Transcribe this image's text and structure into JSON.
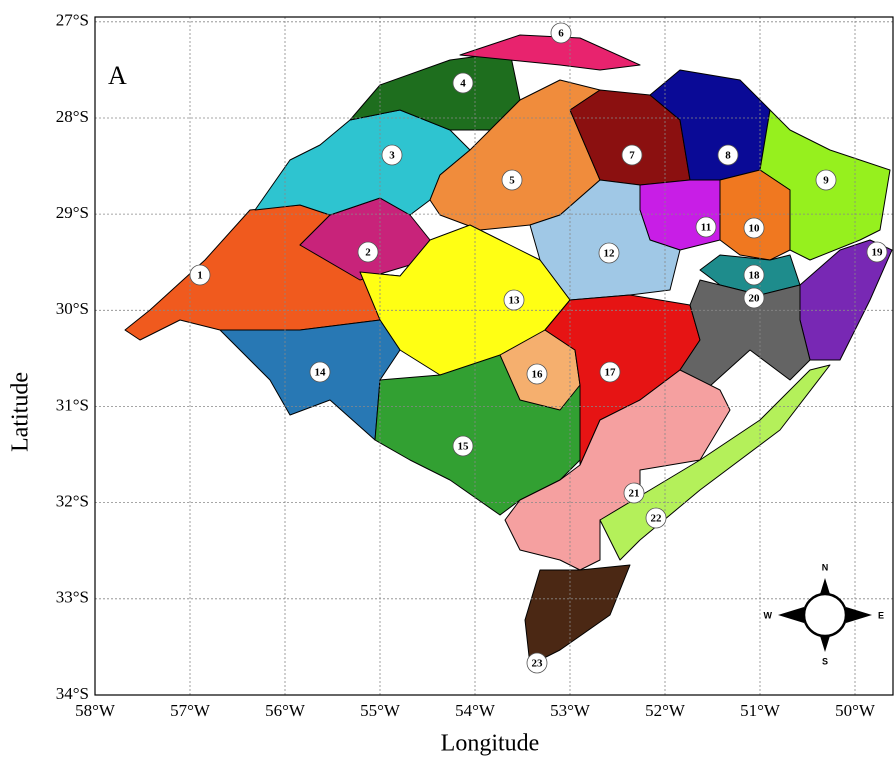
{
  "map": {
    "panel_label": "A",
    "x_label": "Longitude",
    "y_label": "Latitude",
    "xlim": [
      -58,
      -49.6
    ],
    "ylim": [
      -34,
      -26.95
    ],
    "xticks": [
      {
        "value": -58,
        "label": "58°W"
      },
      {
        "value": -57,
        "label": "57°W"
      },
      {
        "value": -56,
        "label": "56°W"
      },
      {
        "value": -55,
        "label": "55°W"
      },
      {
        "value": -54,
        "label": "54°W"
      },
      {
        "value": -53,
        "label": "53°W"
      },
      {
        "value": -52,
        "label": "52°W"
      },
      {
        "value": -51,
        "label": "51°W"
      },
      {
        "value": -50,
        "label": "50°W"
      }
    ],
    "yticks": [
      {
        "value": -27,
        "label": "27°S"
      },
      {
        "value": -28,
        "label": "28°S"
      },
      {
        "value": -29,
        "label": "29°S"
      },
      {
        "value": -30,
        "label": "30°S"
      },
      {
        "value": -31,
        "label": "31°S"
      },
      {
        "value": -32,
        "label": "32°S"
      },
      {
        "value": -33,
        "label": "33°S"
      },
      {
        "value": -34,
        "label": "34°S"
      }
    ],
    "grid": true,
    "regions": [
      {
        "label": "1",
        "color": "#f05a1e"
      },
      {
        "label": "2",
        "color": "#c8237a"
      },
      {
        "label": "3",
        "color": "#2ec4d0"
      },
      {
        "label": "4",
        "color": "#1e6e1e"
      },
      {
        "label": "5",
        "color": "#f08c3c"
      },
      {
        "label": "6",
        "color": "#e8236e"
      },
      {
        "label": "7",
        "color": "#8b1010"
      },
      {
        "label": "8",
        "color": "#0a0a96"
      },
      {
        "label": "9",
        "color": "#96f01e"
      },
      {
        "label": "10",
        "color": "#f07820"
      },
      {
        "label": "11",
        "color": "#c81ee6"
      },
      {
        "label": "12",
        "color": "#a0c8e6"
      },
      {
        "label": "13",
        "color": "#ffff14"
      },
      {
        "label": "14",
        "color": "#2878b4"
      },
      {
        "label": "15",
        "color": "#32a032"
      },
      {
        "label": "16",
        "color": "#f5af6e"
      },
      {
        "label": "17",
        "color": "#e61414"
      },
      {
        "label": "18",
        "color": "#1e8c8c"
      },
      {
        "label": "19",
        "color": "#7828b4"
      },
      {
        "label": "20",
        "color": "#646464"
      },
      {
        "label": "21",
        "color": "#f5a0a0"
      },
      {
        "label": "22",
        "color": "#b4f05a"
      },
      {
        "label": "23",
        "color": "#4b2814"
      }
    ],
    "compass": {
      "n": "N",
      "s": "S",
      "e": "E",
      "w": "W"
    }
  }
}
